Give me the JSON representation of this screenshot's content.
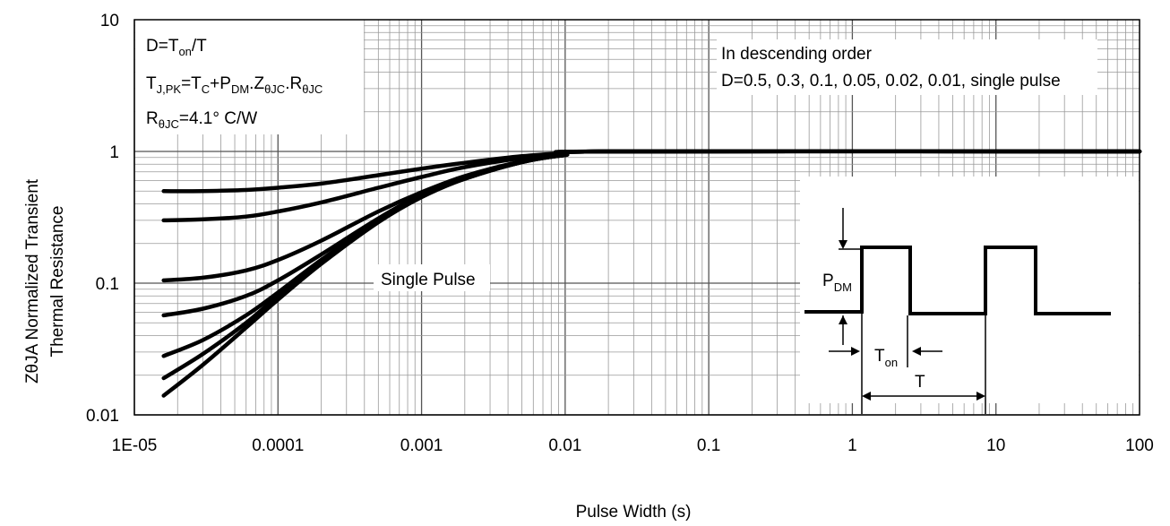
{
  "chart_data": {
    "type": "line",
    "title": "",
    "xlabel": "Pulse Width (s)",
    "ylabel_line1": "ZθJA Normalized Transient",
    "ylabel_line2": "Thermal Resistance",
    "x_scale": "log",
    "y_scale": "log",
    "xlim": [
      1e-05,
      100
    ],
    "ylim": [
      0.01,
      10
    ],
    "grid": true,
    "x_tick_labels": [
      "1E-05",
      "0.0001",
      "0.001",
      "0.01",
      "0.1",
      "1",
      "10",
      "100"
    ],
    "y_tick_labels": [
      "0.01",
      "0.1",
      "1",
      "10"
    ],
    "series": [
      {
        "x": [
          1.6e-05,
          3e-05,
          6e-05,
          0.0001,
          0.0002,
          0.0005,
          0.001,
          0.002,
          0.005,
          0.01,
          0.02,
          100
        ],
        "y": [
          0.5,
          0.5,
          0.51,
          0.53,
          0.57,
          0.66,
          0.74,
          0.82,
          0.92,
          0.97,
          1.0,
          1.0
        ]
      },
      {
        "x": [
          1.6e-05,
          3e-05,
          6e-05,
          0.0001,
          0.0002,
          0.0005,
          0.001,
          0.002,
          0.005,
          0.01,
          0.02,
          100
        ],
        "y": [
          0.3,
          0.305,
          0.32,
          0.35,
          0.41,
          0.53,
          0.64,
          0.76,
          0.89,
          0.96,
          1.0,
          1.0
        ]
      },
      {
        "x": [
          1.6e-05,
          3e-05,
          6e-05,
          0.0001,
          0.0002,
          0.0005,
          0.001,
          0.002,
          0.005,
          0.01,
          0.02,
          100
        ],
        "y": [
          0.105,
          0.11,
          0.125,
          0.15,
          0.21,
          0.35,
          0.49,
          0.65,
          0.84,
          0.94,
          1.0,
          1.0
        ]
      },
      {
        "x": [
          1.6e-05,
          3e-05,
          6e-05,
          0.0001,
          0.0002,
          0.0005,
          0.001,
          0.002,
          0.005,
          0.01,
          0.02,
          100
        ],
        "y": [
          0.057,
          0.064,
          0.08,
          0.105,
          0.165,
          0.31,
          0.47,
          0.63,
          0.83,
          0.94,
          1.0,
          1.0
        ]
      },
      {
        "x": [
          1.6e-05,
          3e-05,
          6e-05,
          0.0001,
          0.0002,
          0.0005,
          0.001,
          0.002,
          0.005,
          0.01,
          0.02,
          100
        ],
        "y": [
          0.028,
          0.037,
          0.057,
          0.085,
          0.15,
          0.3,
          0.46,
          0.62,
          0.83,
          0.94,
          1.0,
          1.0
        ]
      },
      {
        "x": [
          1.6e-05,
          3e-05,
          6e-05,
          0.0001,
          0.0002,
          0.0005,
          0.001,
          0.002,
          0.005,
          0.01,
          0.02,
          100
        ],
        "y": [
          0.019,
          0.029,
          0.05,
          0.08,
          0.145,
          0.3,
          0.46,
          0.62,
          0.83,
          0.94,
          1.0,
          1.0
        ]
      },
      {
        "x": [
          1.6e-05,
          3e-05,
          6e-05,
          0.0001,
          0.0002,
          0.0005,
          0.001,
          0.002,
          0.005,
          0.01,
          0.02,
          100
        ],
        "y": [
          0.014,
          0.024,
          0.046,
          0.075,
          0.14,
          0.29,
          0.45,
          0.62,
          0.83,
          0.94,
          1.0,
          1.0
        ]
      }
    ],
    "annotations": {
      "single_pulse": "Single Pulse",
      "order_line1": "In descending order",
      "order_line2": "D=0.5, 0.3, 0.1, 0.05, 0.02, 0.01, single pulse",
      "eq1": {
        "a": "D=T",
        "a_sub": "on",
        "b": "/T"
      },
      "eq2": {
        "a": "T",
        "a_sub": "J,PK",
        "b": "=T",
        "b_sub": "C",
        "c": "+P",
        "c_sub": "DM",
        "d": ".Z",
        "d_sub": "θJC",
        "e": ".R",
        "e_sub": "θJC"
      },
      "eq3": {
        "a": "R",
        "a_sub": "θJC",
        "b": "=4.1°  C/W"
      },
      "inset": {
        "pdm": "P",
        "pdm_sub": "DM",
        "ton": "T",
        "ton_sub": "on",
        "t": "T"
      }
    }
  }
}
